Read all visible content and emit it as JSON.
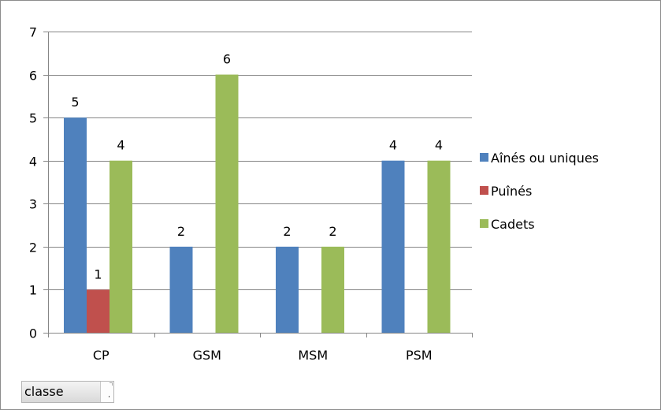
{
  "chart_data": {
    "type": "bar",
    "categories": [
      "CP",
      "GSM",
      "MSM",
      "PSM"
    ],
    "series": [
      {
        "name": "Aînés ou uniques",
        "color": "#4f81bd",
        "values": [
          5,
          2,
          2,
          4
        ]
      },
      {
        "name": "Puînés",
        "color": "#c0504d",
        "values": [
          1,
          null,
          null,
          null
        ]
      },
      {
        "name": "Cadets",
        "color": "#9bbb59",
        "values": [
          4,
          6,
          2,
          4
        ]
      }
    ],
    "title": "",
    "xlabel": "",
    "ylabel": "",
    "ylim": [
      0,
      7
    ],
    "yticks": [
      "0",
      "1",
      "2",
      "3",
      "4",
      "5",
      "6",
      "7"
    ],
    "grid": true,
    "legend_position": "right",
    "data_labels": true
  },
  "field_button": {
    "label": "classe",
    "icon": "dropdown-arrow-icon"
  }
}
